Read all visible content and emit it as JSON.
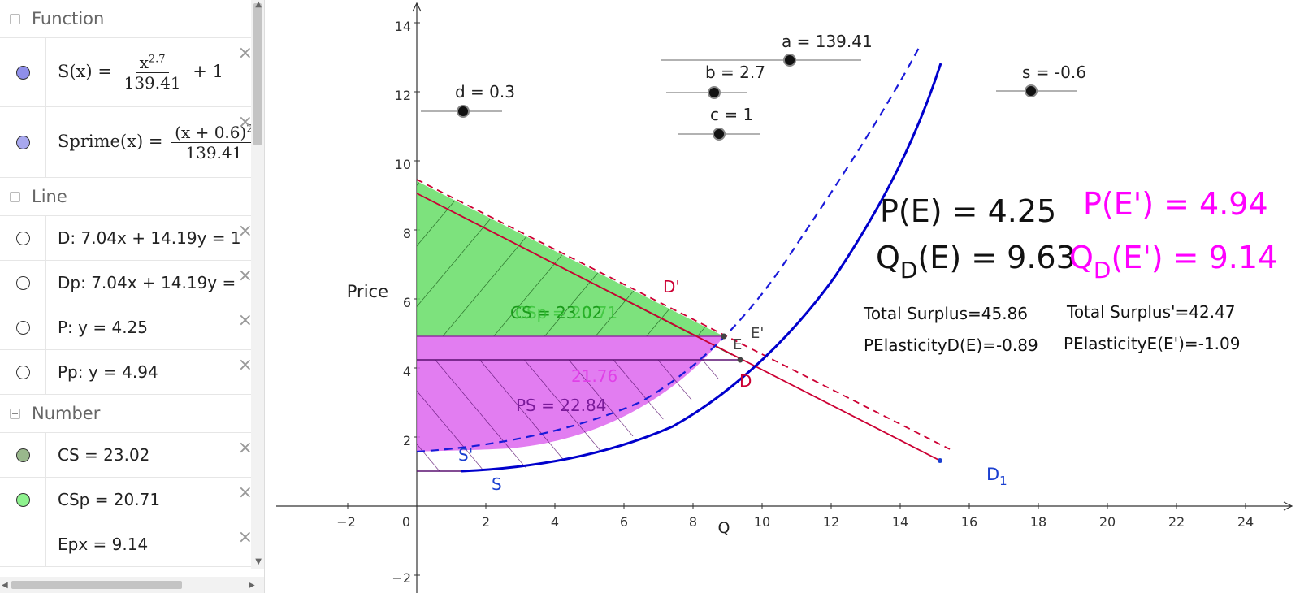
{
  "algebra": {
    "groups": [
      {
        "title": "Function",
        "items": [
          {
            "kind": "function",
            "name": "S",
            "arg": "(x)",
            "num_base": "x",
            "num_exp": "2.7",
            "den": "139.41",
            "tail": "+ 1",
            "color": "#8f8fea"
          },
          {
            "kind": "function",
            "name": "Sprime",
            "arg": "(x)",
            "num_base": "(x + 0.6)",
            "num_exp": "2",
            "den": "139.41",
            "tail": "",
            "color": "#a8a8ef"
          }
        ]
      },
      {
        "title": "Line",
        "items": [
          {
            "kind": "text",
            "text": "D: 7.04x + 14.19y = 1",
            "color": "#ffffff"
          },
          {
            "kind": "text",
            "text": "Dp: 7.04x + 14.19y =",
            "color": "#ffffff"
          },
          {
            "kind": "text",
            "text": "P: y = 4.25",
            "color": "#ffffff"
          },
          {
            "kind": "text",
            "text": "Pp: y = 4.94",
            "color": "#ffffff"
          }
        ]
      },
      {
        "title": "Number",
        "items": [
          {
            "kind": "text",
            "text": "CS = 23.02",
            "color": "#99b88c"
          },
          {
            "kind": "text",
            "text": "CSp = 20.71",
            "color": "#8ef28e"
          },
          {
            "kind": "text",
            "text": "Epx = 9.14",
            "color": ""
          }
        ]
      }
    ]
  },
  "graph": {
    "x_ticks": [
      "−2",
      "0",
      "2",
      "4",
      "6",
      "8",
      "10",
      "12",
      "14",
      "16",
      "18",
      "20",
      "22",
      "24"
    ],
    "y_ticks": [
      "14",
      "12",
      "10",
      "8",
      "6",
      "4",
      "2",
      "−2"
    ],
    "x_label": "Q",
    "y_label": "Price",
    "sliders": {
      "a": "a = 139.41",
      "b": "b = 2.7",
      "c": "c = 1",
      "d": "d = 0.3",
      "s": "s = -0.6"
    },
    "labels": {
      "S": "S",
      "Sp": "S'",
      "D": "D",
      "Dp": "D'",
      "D1_main": "D",
      "D1_sub": "1",
      "E": "E",
      "Ep": "E'",
      "CS": "CS = 23.02",
      "CSp": "CSp = 20.71",
      "PS": "PS = 22.84",
      "PSp": "21.76"
    },
    "stats": {
      "PE": "P(E) = 4.25",
      "QD_main": "Q",
      "QD_sub": "D",
      "QD_rest": "(E) = 9.63",
      "PEp": "P(E') = 4.94",
      "QDp_main": "Q",
      "QDp_sub": "D",
      "QDp_rest": "(E') = 9.14",
      "TS": "Total Surplus=45.86",
      "TSp": "Total Surplus'=42.47",
      "ElD": "PElasticityD(E)=-0.89",
      "ElE": "PElasticityE(E')=-1.09"
    },
    "colors": {
      "supply": "#0000cc",
      "demand": "#cc0033",
      "cs": "#66dd66",
      "ps": "#dd66ee",
      "stats_prime": "#ff00ff"
    }
  }
}
